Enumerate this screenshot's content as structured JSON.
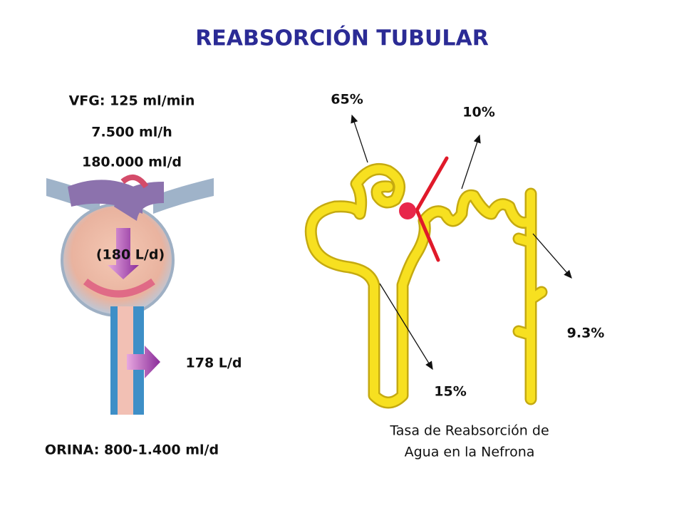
{
  "title": "REABSORCIÓN TUBULAR",
  "left": {
    "vfg": "VFG: 125 ml/min",
    "per_hour": "7.500 ml/h",
    "per_day": "180.000 ml/d",
    "filtered": "(180 L/d)",
    "reabsorbed": "178 L/d",
    "urine": "ORINA: 800-1.400 ml/d"
  },
  "right": {
    "proximal": "65%",
    "distal": "10%",
    "collecting": "9.3%",
    "loop": "15%",
    "caption": [
      "Tasa de Reabsorción de",
      "Agua en la Nefrona"
    ]
  }
}
